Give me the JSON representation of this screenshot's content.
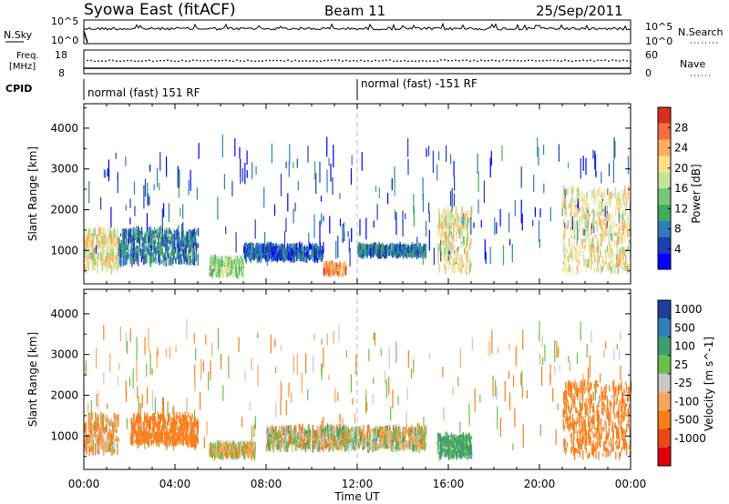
{
  "header": {
    "title": "Syowa East (fitACF)",
    "beam": "Beam 11",
    "date": "25/Sep/2011"
  },
  "panels": {
    "nsky": {
      "label": "N.Sky",
      "top_tick": "10^5",
      "bottom_tick": "10^0",
      "right_top_tick": "10^5",
      "right_bottom_tick": "10^0",
      "right_label": "N.Search"
    },
    "freq": {
      "label_line1": "Freq.",
      "label_line2": "[MHz]",
      "top_tick": "18",
      "bottom_tick": "8",
      "right_top_tick": "60",
      "right_bottom_tick": "0",
      "right_label": "Nave"
    },
    "cpid": {
      "label": "CPID",
      "segments": [
        "normal (fast) 151 RF",
        "normal (fast) -151 RF"
      ]
    }
  },
  "chart_data": [
    {
      "type": "heatmap",
      "name": "power",
      "ylabel": "Slant Range [km]",
      "xlabel": "",
      "ylim": [
        180,
        4600
      ],
      "xlim": [
        "00:00",
        "24:00"
      ],
      "yticks": [
        1000,
        2000,
        3000,
        4000
      ],
      "colorbar": {
        "label": "Power [dB]",
        "range": [
          0,
          32
        ],
        "ticks": [
          4,
          8,
          12,
          16,
          20,
          24,
          28
        ],
        "colors": [
          "#0000ff",
          "#1f3fb0",
          "#2c7fb8",
          "#41ab5d",
          "#78c679",
          "#c2e699",
          "#fee08b",
          "#fdae61",
          "#f46d43",
          "#d7301f"
        ]
      },
      "features": [
        {
          "time_h": [
            0.0,
            1.5
          ],
          "range_km": [
            500,
            1500
          ],
          "level_db": 20
        },
        {
          "time_h": [
            1.5,
            5.0
          ],
          "range_km": [
            700,
            1500
          ],
          "level_db": 8
        },
        {
          "time_h": [
            5.5,
            7.0
          ],
          "range_km": [
            400,
            800
          ],
          "level_db": 16
        },
        {
          "time_h": [
            7.0,
            10.5
          ],
          "range_km": [
            800,
            1100
          ],
          "level_db": 6
        },
        {
          "time_h": [
            10.5,
            11.5
          ],
          "range_km": [
            450,
            650
          ],
          "level_db": 24
        },
        {
          "time_h": [
            12.0,
            15.0
          ],
          "range_km": [
            900,
            1100
          ],
          "level_db": 8
        },
        {
          "time_h": [
            15.5,
            17.0
          ],
          "range_km": [
            500,
            2000
          ],
          "level_db": 20
        },
        {
          "time_h": [
            21.0,
            24.0
          ],
          "range_km": [
            500,
            2500
          ],
          "level_db": 20
        }
      ]
    },
    {
      "type": "heatmap",
      "name": "velocity",
      "ylabel": "Slant Range [km]",
      "xlabel": "Time UT",
      "ylim": [
        180,
        4600
      ],
      "xlim": [
        "00:00",
        "24:00"
      ],
      "yticks": [
        1000,
        2000,
        3000,
        4000
      ],
      "xticks": [
        "00:00",
        "04:00",
        "08:00",
        "12:00",
        "16:00",
        "20:00",
        "00:00"
      ],
      "colorbar": {
        "label": "Velocity [m s^-1]",
        "ticks": [
          "1000",
          "500",
          "100",
          "25",
          "-25",
          "-100",
          "-500",
          "-1000"
        ],
        "colors": [
          "#1c3f9e",
          "#2f7fb8",
          "#3f9e6e",
          "#6cc04a",
          "#c8c8c8",
          "#fda55e",
          "#f77f1c",
          "#e84a12",
          "#e0000c"
        ]
      },
      "features": [
        {
          "time_h": [
            0.0,
            1.5
          ],
          "range_km": [
            600,
            1500
          ],
          "velocity_ms": -100
        },
        {
          "time_h": [
            2.0,
            5.0
          ],
          "range_km": [
            800,
            1500
          ],
          "velocity_ms": -300
        },
        {
          "time_h": [
            5.5,
            7.5
          ],
          "range_km": [
            500,
            800
          ],
          "velocity_ms": -50
        },
        {
          "time_h": [
            8.0,
            15.0
          ],
          "range_km": [
            700,
            1200
          ],
          "velocity_ms": 0
        },
        {
          "time_h": [
            15.5,
            17.0
          ],
          "range_km": [
            500,
            1000
          ],
          "velocity_ms": 200
        },
        {
          "time_h": [
            21.0,
            24.0
          ],
          "range_km": [
            500,
            2300
          ],
          "velocity_ms": -300
        }
      ]
    }
  ]
}
